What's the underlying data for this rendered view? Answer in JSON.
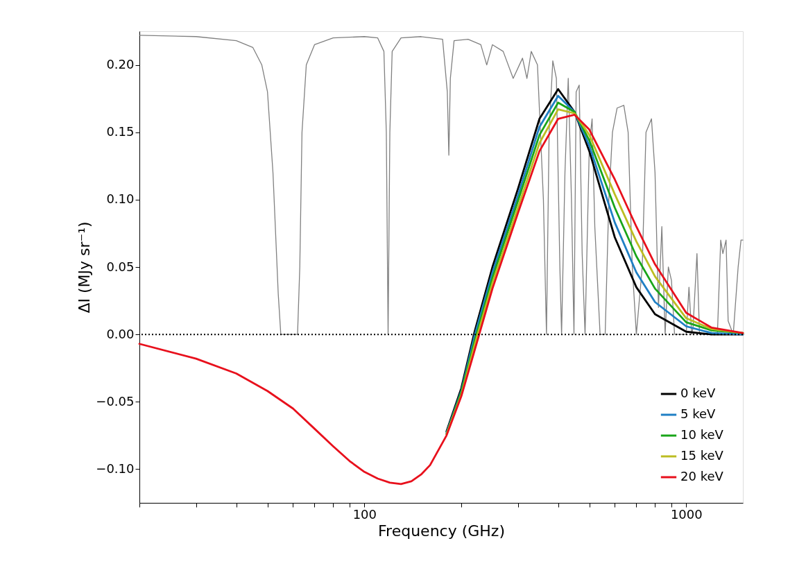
{
  "chart_data": {
    "type": "line",
    "xlabel": "Frequency (GHz)",
    "ylabel": "ΔI (MJy sr⁻¹)",
    "log": "x",
    "grid": false,
    "legend": "bottom right",
    "line_style": "solid",
    "marker": "none",
    "xlim": [
      20,
      1500
    ],
    "ylim": [
      -0.125,
      0.225
    ],
    "xticks": [
      {
        "value": 20,
        "label": null
      },
      {
        "value": 30,
        "label": null
      },
      {
        "value": 40,
        "label": null
      },
      {
        "value": 50,
        "label": null
      },
      {
        "value": 60,
        "label": null
      },
      {
        "value": 70,
        "label": null
      },
      {
        "value": 80,
        "label": null
      },
      {
        "value": 90,
        "label": null
      },
      100,
      {
        "value": 200,
        "label": null
      },
      {
        "value": 300,
        "label": null
      },
      {
        "value": 400,
        "label": null
      },
      {
        "value": 500,
        "label": null
      },
      {
        "value": 600,
        "label": null
      },
      {
        "value": 700,
        "label": null
      },
      {
        "value": 800,
        "label": null
      },
      {
        "value": 900,
        "label": null
      },
      1000
    ],
    "yticks": [
      {
        "value": -0.1,
        "label": "−0.10"
      },
      {
        "value": -0.05,
        "label": "−0.05"
      },
      {
        "value": 0,
        "label": "0.00"
      },
      {
        "value": 0.05,
        "label": "0.05"
      },
      {
        "value": 0.1,
        "label": "0.10"
      },
      {
        "value": 0.15,
        "label": "0.15"
      },
      {
        "value": 0.2,
        "label": "0.20"
      }
    ],
    "ref_lines": [
      {
        "axis": "y",
        "value": 0,
        "color": "#000000",
        "line_style": "dotted"
      }
    ],
    "series": [
      {
        "color": "#808080",
        "x": [
          20,
          30,
          40,
          45,
          48,
          50,
          52,
          54,
          55,
          62,
          63,
          64,
          66,
          70,
          80,
          100,
          110,
          115,
          117,
          118.5,
          120,
          122,
          130,
          150,
          175,
          181,
          183,
          185,
          190,
          210,
          230,
          240,
          250,
          270,
          290,
          310,
          320,
          330,
          345,
          360,
          368,
          375,
          385,
          395,
          405,
          410,
          420,
          430,
          440,
          448,
          455,
          465,
          475,
          485,
          500,
          510,
          520,
          540,
          560,
          575,
          590,
          610,
          640,
          660,
          680,
          700,
          730,
          750,
          780,
          800,
          820,
          840,
          860,
          880,
          900,
          920,
          1000,
          1020,
          1040,
          1050,
          1080,
          1100,
          1250,
          1280,
          1300,
          1330,
          1350,
          1400,
          1450,
          1480,
          1500
        ],
        "values": [
          0.222,
          0.221,
          0.218,
          0.213,
          0.2,
          0.18,
          0.12,
          0.03,
          0.0,
          0.0,
          0.05,
          0.15,
          0.2,
          0.215,
          0.22,
          0.221,
          0.22,
          0.21,
          0.15,
          0.0,
          0.15,
          0.21,
          0.22,
          0.221,
          0.219,
          0.18,
          0.133,
          0.19,
          0.218,
          0.219,
          0.215,
          0.2,
          0.215,
          0.21,
          0.19,
          0.205,
          0.19,
          0.21,
          0.2,
          0.1,
          0.0,
          0.15,
          0.203,
          0.19,
          0.05,
          0.0,
          0.12,
          0.19,
          0.1,
          0.0,
          0.18,
          0.185,
          0.06,
          0.0,
          0.14,
          0.16,
          0.08,
          0.0,
          0.0,
          0.1,
          0.15,
          0.168,
          0.17,
          0.15,
          0.05,
          0.0,
          0.05,
          0.15,
          0.16,
          0.12,
          0.02,
          0.08,
          0.0,
          0.05,
          0.04,
          0.0,
          0.0,
          0.035,
          0.0,
          0.005,
          0.06,
          0.0,
          0.0,
          0.07,
          0.06,
          0.07,
          0.01,
          0.0,
          0.05,
          0.07,
          0.07
        ]
      },
      {
        "name": "0 keV",
        "color": "#000000",
        "x": [
          180,
          200,
          220,
          250,
          300,
          350,
          400,
          450,
          500,
          600,
          700,
          800,
          1000,
          1200,
          1500
        ],
        "values": [
          -0.072,
          -0.04,
          0.002,
          0.05,
          0.108,
          0.16,
          0.182,
          0.165,
          0.136,
          0.072,
          0.035,
          0.015,
          0.002,
          0.0,
          0.0
        ]
      },
      {
        "name": "5 keV",
        "color": "#1f7fc4",
        "x": [
          180,
          200,
          220,
          250,
          300,
          350,
          400,
          450,
          500,
          600,
          700,
          800,
          1000,
          1200,
          1500
        ],
        "values": [
          -0.073,
          -0.042,
          -0.001,
          0.046,
          0.103,
          0.154,
          0.177,
          0.165,
          0.14,
          0.083,
          0.046,
          0.024,
          0.006,
          0.001,
          0.0
        ]
      },
      {
        "name": "10 keV",
        "color": "#19a519",
        "x": [
          180,
          200,
          220,
          250,
          300,
          350,
          400,
          450,
          500,
          600,
          700,
          800,
          1000,
          1200,
          1500
        ],
        "values": [
          -0.074,
          -0.043,
          -0.005,
          0.042,
          0.099,
          0.148,
          0.172,
          0.165,
          0.144,
          0.094,
          0.058,
          0.034,
          0.009,
          0.003,
          0.001
        ]
      },
      {
        "name": "15 keV",
        "color": "#bcbd22",
        "x": [
          180,
          200,
          220,
          250,
          300,
          350,
          400,
          450,
          500,
          600,
          700,
          800,
          1000,
          1200,
          1500
        ],
        "values": [
          -0.074,
          -0.045,
          -0.008,
          0.038,
          0.094,
          0.142,
          0.167,
          0.164,
          0.148,
          0.104,
          0.069,
          0.043,
          0.012,
          0.004,
          0.001
        ]
      },
      {
        "name": "20 keV",
        "color": "#e8101c",
        "x": [
          20,
          30,
          40,
          50,
          60,
          70,
          80,
          90,
          100,
          110,
          120,
          130,
          140,
          150,
          160,
          180,
          200,
          220,
          250,
          300,
          350,
          400,
          450,
          500,
          600,
          700,
          800,
          1000,
          1200,
          1500
        ],
        "values": [
          -0.007,
          -0.018,
          -0.029,
          -0.042,
          -0.055,
          -0.07,
          -0.083,
          -0.094,
          -0.102,
          -0.107,
          -0.11,
          -0.111,
          -0.109,
          -0.104,
          -0.097,
          -0.075,
          -0.046,
          -0.012,
          0.034,
          0.09,
          0.136,
          0.16,
          0.163,
          0.152,
          0.115,
          0.08,
          0.052,
          0.016,
          0.005,
          0.001
        ]
      }
    ]
  }
}
